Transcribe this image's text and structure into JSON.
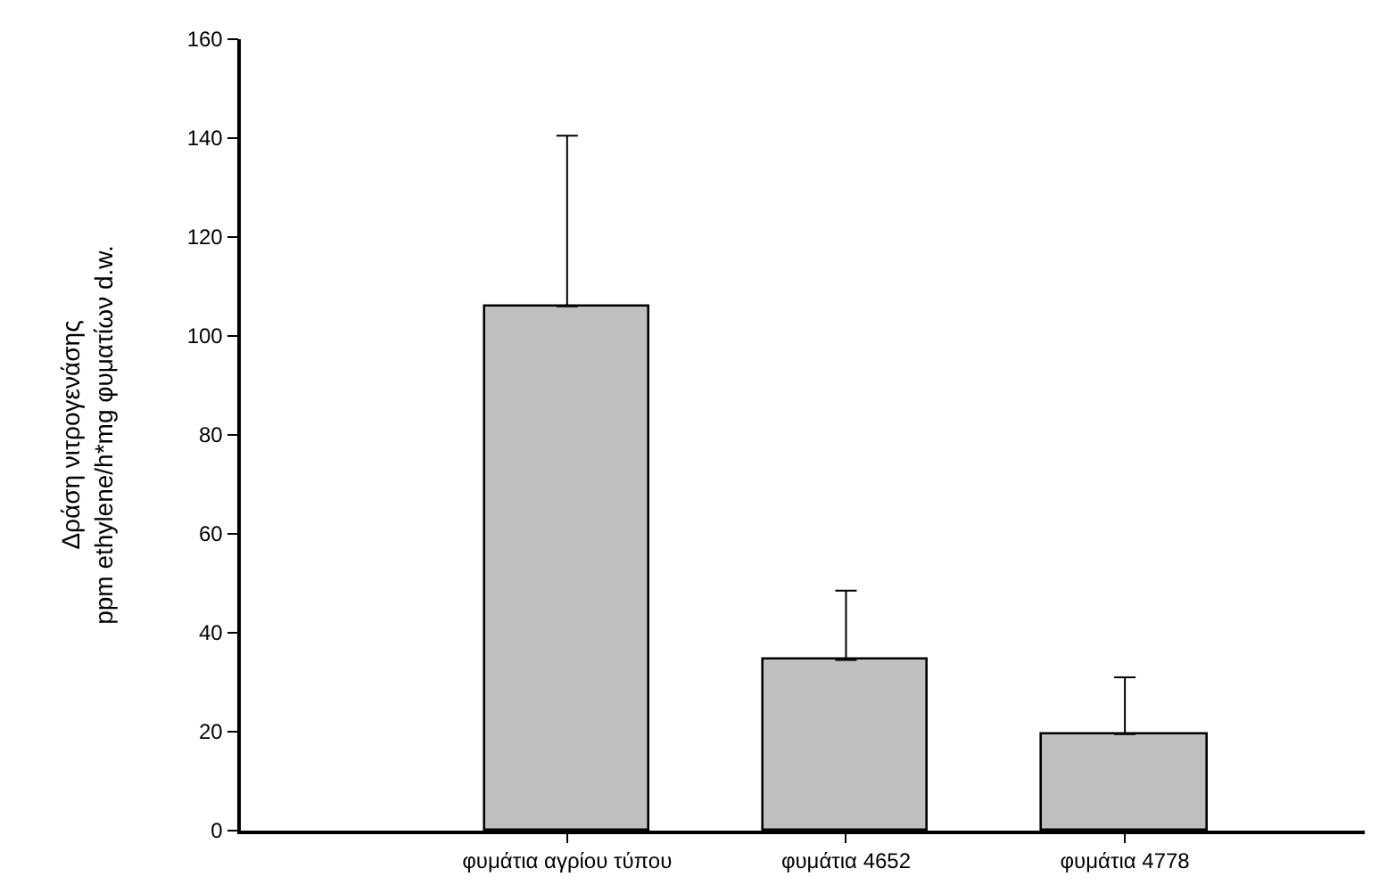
{
  "chart_data": {
    "type": "bar",
    "ylabel": "Δράση νιτρογενάσης\nppm ethylene/h*mg φυματίων d.w.",
    "categories": [
      "φυμάτια αγρίου τύπου",
      "φυμάτια 4652",
      "φυμάτια 4778"
    ],
    "values": [
      106,
      34.5,
      19.5
    ],
    "errors": [
      [
        106,
        140.5
      ],
      [
        34.5,
        48.5
      ],
      [
        19.5,
        31
      ]
    ],
    "color": "#c0c0c0",
    "ylim": [
      0,
      160
    ],
    "yticks": [
      0,
      20,
      40,
      60,
      80,
      100,
      120,
      140,
      160
    ]
  }
}
